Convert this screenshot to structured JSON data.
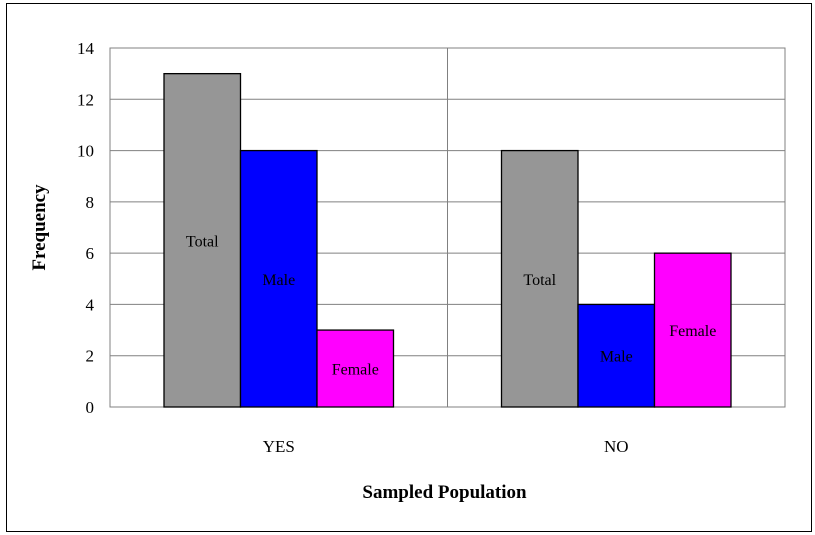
{
  "chart_data": {
    "type": "bar",
    "title": "",
    "xlabel": "Sampled Population",
    "ylabel": "Frequency",
    "categories": [
      "YES",
      "NO"
    ],
    "ylim": [
      0,
      14
    ],
    "yticks": [
      0,
      2,
      4,
      6,
      8,
      10,
      12,
      14
    ],
    "grid": true,
    "legend": "none",
    "series": [
      {
        "name": "Total",
        "color": "#969696",
        "values": [
          13,
          10
        ]
      },
      {
        "name": "Male",
        "color": "#0000ff",
        "values": [
          10,
          4
        ]
      },
      {
        "name": "Female",
        "color": "#ff00ff",
        "values": [
          3,
          6
        ]
      }
    ]
  }
}
